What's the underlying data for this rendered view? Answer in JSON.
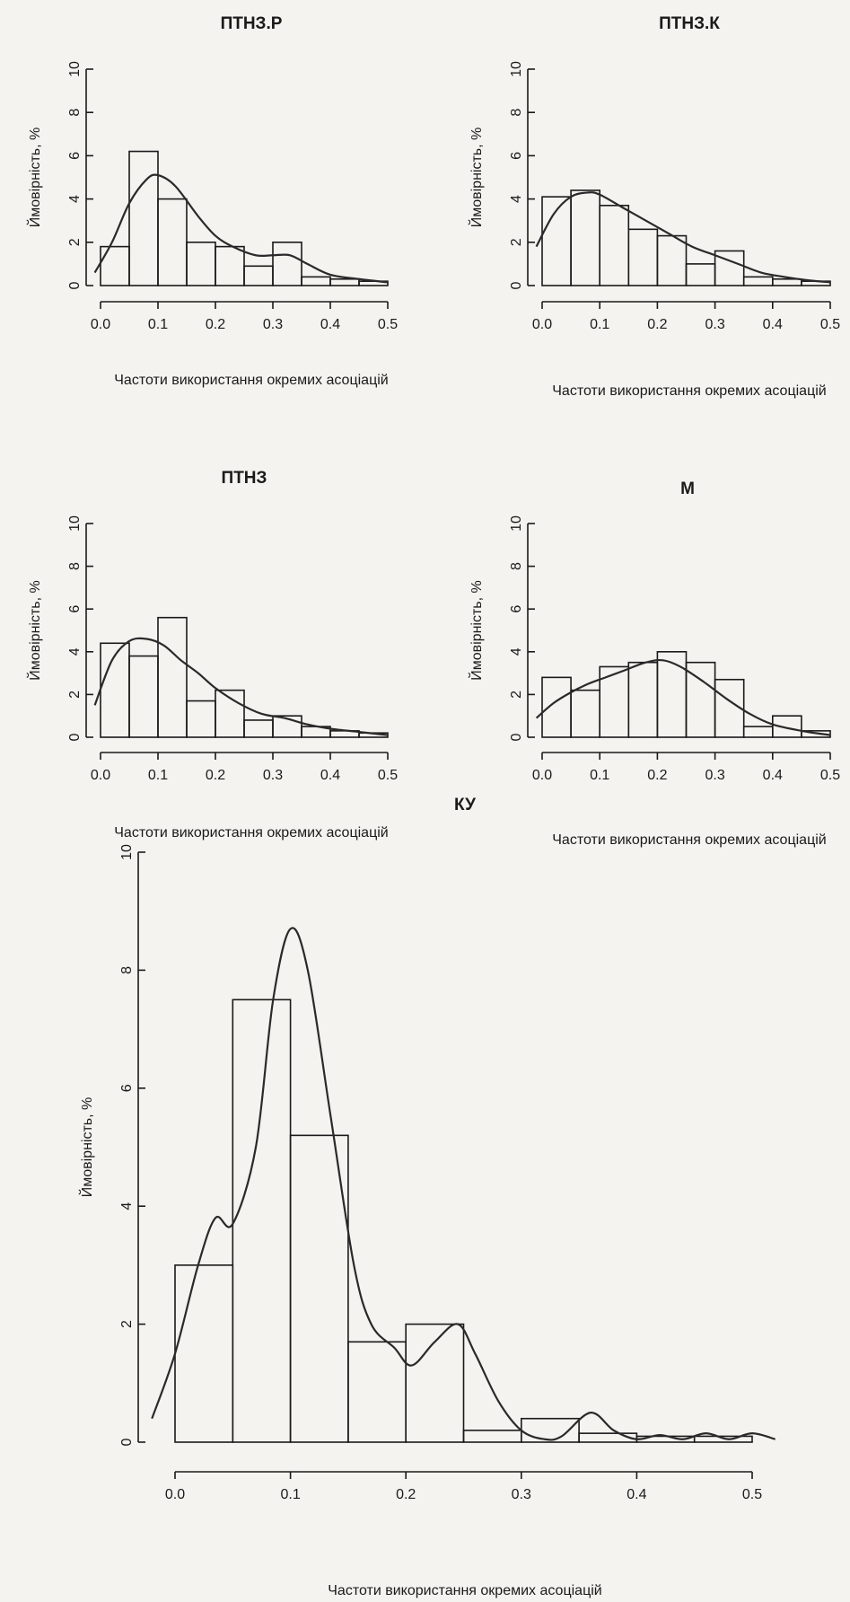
{
  "chart_data": [
    {
      "type": "bar",
      "title": "ПТНЗ.Р",
      "xlabel": "Частоти використання окремих асоціацій",
      "ylabel": "Ймовірність, %",
      "xlim": [
        0,
        0.5
      ],
      "ylim": [
        0,
        10
      ],
      "xticks": [
        "0.0",
        "0.1",
        "0.2",
        "0.3",
        "0.4",
        "0.5"
      ],
      "yticks": [
        "0",
        "2",
        "4",
        "6",
        "8",
        "10"
      ],
      "bins": [
        [
          0.0,
          0.05
        ],
        [
          0.05,
          0.1
        ],
        [
          0.1,
          0.15
        ],
        [
          0.15,
          0.2
        ],
        [
          0.2,
          0.25
        ],
        [
          0.25,
          0.3
        ],
        [
          0.3,
          0.35
        ],
        [
          0.35,
          0.4
        ],
        [
          0.4,
          0.45
        ],
        [
          0.45,
          0.5
        ]
      ],
      "values": [
        1.8,
        6.2,
        4.0,
        2.0,
        1.8,
        0.9,
        2.0,
        0.4,
        0.3,
        0.2
      ],
      "density": [
        [
          -0.01,
          0.6
        ],
        [
          0.02,
          2.0
        ],
        [
          0.05,
          3.8
        ],
        [
          0.08,
          4.9
        ],
        [
          0.1,
          5.1
        ],
        [
          0.13,
          4.6
        ],
        [
          0.17,
          3.2
        ],
        [
          0.2,
          2.3
        ],
        [
          0.23,
          1.8
        ],
        [
          0.27,
          1.4
        ],
        [
          0.3,
          1.4
        ],
        [
          0.33,
          1.4
        ],
        [
          0.36,
          1.0
        ],
        [
          0.4,
          0.5
        ],
        [
          0.45,
          0.3
        ],
        [
          0.5,
          0.15
        ]
      ]
    },
    {
      "type": "bar",
      "title": "ПТНЗ.К",
      "xlabel": "Частоти використання окремих асоціацій",
      "ylabel": "Ймовірність, %",
      "xlim": [
        0,
        0.5
      ],
      "ylim": [
        0,
        10
      ],
      "xticks": [
        "0.0",
        "0.1",
        "0.2",
        "0.3",
        "0.4",
        "0.5"
      ],
      "yticks": [
        "0",
        "2",
        "4",
        "6",
        "8",
        "10"
      ],
      "bins": [
        [
          0.0,
          0.05
        ],
        [
          0.05,
          0.1
        ],
        [
          0.1,
          0.15
        ],
        [
          0.15,
          0.2
        ],
        [
          0.2,
          0.25
        ],
        [
          0.25,
          0.3
        ],
        [
          0.3,
          0.35
        ],
        [
          0.35,
          0.4
        ],
        [
          0.4,
          0.45
        ],
        [
          0.45,
          0.5
        ]
      ],
      "values": [
        4.1,
        4.4,
        3.7,
        2.6,
        2.3,
        1.0,
        1.6,
        0.4,
        0.3,
        0.2
      ],
      "density": [
        [
          -0.01,
          1.8
        ],
        [
          0.02,
          3.3
        ],
        [
          0.05,
          4.1
        ],
        [
          0.08,
          4.3
        ],
        [
          0.1,
          4.2
        ],
        [
          0.14,
          3.6
        ],
        [
          0.18,
          3.0
        ],
        [
          0.22,
          2.4
        ],
        [
          0.26,
          1.8
        ],
        [
          0.3,
          1.4
        ],
        [
          0.34,
          1.0
        ],
        [
          0.38,
          0.6
        ],
        [
          0.42,
          0.4
        ],
        [
          0.46,
          0.25
        ],
        [
          0.5,
          0.15
        ]
      ]
    },
    {
      "type": "bar",
      "title": "ПТНЗ",
      "xlabel": "Частоти використання окремих асоціацій",
      "ylabel": "Ймовірність, %",
      "xlim": [
        0,
        0.5
      ],
      "ylim": [
        0,
        10
      ],
      "xticks": [
        "0.0",
        "0.1",
        "0.2",
        "0.3",
        "0.4",
        "0.5"
      ],
      "yticks": [
        "0",
        "2",
        "4",
        "6",
        "8",
        "10"
      ],
      "bins": [
        [
          0.0,
          0.05
        ],
        [
          0.05,
          0.1
        ],
        [
          0.1,
          0.15
        ],
        [
          0.15,
          0.2
        ],
        [
          0.2,
          0.25
        ],
        [
          0.25,
          0.3
        ],
        [
          0.3,
          0.35
        ],
        [
          0.35,
          0.4
        ],
        [
          0.4,
          0.45
        ],
        [
          0.45,
          0.5
        ]
      ],
      "values": [
        4.4,
        3.8,
        5.6,
        1.7,
        2.2,
        0.8,
        1.0,
        0.5,
        0.3,
        0.2
      ],
      "density": [
        [
          -0.01,
          1.5
        ],
        [
          0.02,
          3.6
        ],
        [
          0.05,
          4.5
        ],
        [
          0.08,
          4.6
        ],
        [
          0.11,
          4.3
        ],
        [
          0.14,
          3.6
        ],
        [
          0.17,
          3.0
        ],
        [
          0.2,
          2.3
        ],
        [
          0.24,
          1.6
        ],
        [
          0.28,
          1.1
        ],
        [
          0.32,
          0.9
        ],
        [
          0.36,
          0.6
        ],
        [
          0.4,
          0.4
        ],
        [
          0.45,
          0.25
        ],
        [
          0.5,
          0.1
        ]
      ]
    },
    {
      "type": "bar",
      "title": "М",
      "xlabel": "Частоти використання окремих асоціацій",
      "ylabel": "Ймовірність, %",
      "xlim": [
        0,
        0.5
      ],
      "ylim": [
        0,
        10
      ],
      "xticks": [
        "0.0",
        "0.1",
        "0.2",
        "0.3",
        "0.4",
        "0.5"
      ],
      "yticks": [
        "0",
        "2",
        "4",
        "6",
        "8",
        "10"
      ],
      "bins": [
        [
          0.0,
          0.05
        ],
        [
          0.05,
          0.1
        ],
        [
          0.1,
          0.15
        ],
        [
          0.15,
          0.2
        ],
        [
          0.2,
          0.25
        ],
        [
          0.25,
          0.3
        ],
        [
          0.3,
          0.35
        ],
        [
          0.35,
          0.4
        ],
        [
          0.4,
          0.45
        ],
        [
          0.45,
          0.5
        ]
      ],
      "values": [
        2.8,
        2.2,
        3.3,
        3.5,
        4.0,
        3.5,
        2.7,
        0.5,
        1.0,
        0.3
      ],
      "density": [
        [
          -0.01,
          0.9
        ],
        [
          0.02,
          1.6
        ],
        [
          0.05,
          2.1
        ],
        [
          0.08,
          2.5
        ],
        [
          0.11,
          2.8
        ],
        [
          0.14,
          3.1
        ],
        [
          0.18,
          3.5
        ],
        [
          0.21,
          3.6
        ],
        [
          0.24,
          3.3
        ],
        [
          0.28,
          2.6
        ],
        [
          0.32,
          1.8
        ],
        [
          0.36,
          1.1
        ],
        [
          0.4,
          0.6
        ],
        [
          0.45,
          0.3
        ],
        [
          0.5,
          0.1
        ]
      ]
    },
    {
      "type": "bar",
      "title": "КУ",
      "xlabel": "Частоти використання окремих асоціацій",
      "ylabel": "Ймовірність, %",
      "xlim": [
        0,
        0.5
      ],
      "ylim": [
        0,
        10
      ],
      "xticks": [
        "0.0",
        "0.1",
        "0.2",
        "0.3",
        "0.4",
        "0.5"
      ],
      "yticks": [
        "0",
        "2",
        "4",
        "6",
        "8",
        "10"
      ],
      "bins": [
        [
          0.0,
          0.05
        ],
        [
          0.05,
          0.1
        ],
        [
          0.1,
          0.15
        ],
        [
          0.15,
          0.2
        ],
        [
          0.2,
          0.25
        ],
        [
          0.25,
          0.3
        ],
        [
          0.3,
          0.35
        ],
        [
          0.35,
          0.4
        ],
        [
          0.4,
          0.45
        ],
        [
          0.45,
          0.5
        ]
      ],
      "values": [
        3.0,
        7.5,
        5.2,
        1.7,
        2.0,
        0.2,
        0.4,
        0.15,
        0.1,
        0.1
      ],
      "density": [
        [
          -0.02,
          0.4
        ],
        [
          0.0,
          1.5
        ],
        [
          0.02,
          3.0
        ],
        [
          0.035,
          3.8
        ],
        [
          0.05,
          3.7
        ],
        [
          0.07,
          5.0
        ],
        [
          0.085,
          7.5
        ],
        [
          0.1,
          8.7
        ],
        [
          0.115,
          8.0
        ],
        [
          0.135,
          5.5
        ],
        [
          0.155,
          3.0
        ],
        [
          0.17,
          2.0
        ],
        [
          0.19,
          1.6
        ],
        [
          0.205,
          1.3
        ],
        [
          0.225,
          1.7
        ],
        [
          0.245,
          2.0
        ],
        [
          0.26,
          1.5
        ],
        [
          0.28,
          0.7
        ],
        [
          0.3,
          0.2
        ],
        [
          0.32,
          0.05
        ],
        [
          0.335,
          0.1
        ],
        [
          0.36,
          0.5
        ],
        [
          0.38,
          0.2
        ],
        [
          0.4,
          0.05
        ],
        [
          0.42,
          0.12
        ],
        [
          0.44,
          0.05
        ],
        [
          0.46,
          0.15
        ],
        [
          0.48,
          0.05
        ],
        [
          0.5,
          0.15
        ],
        [
          0.52,
          0.05
        ]
      ]
    }
  ]
}
